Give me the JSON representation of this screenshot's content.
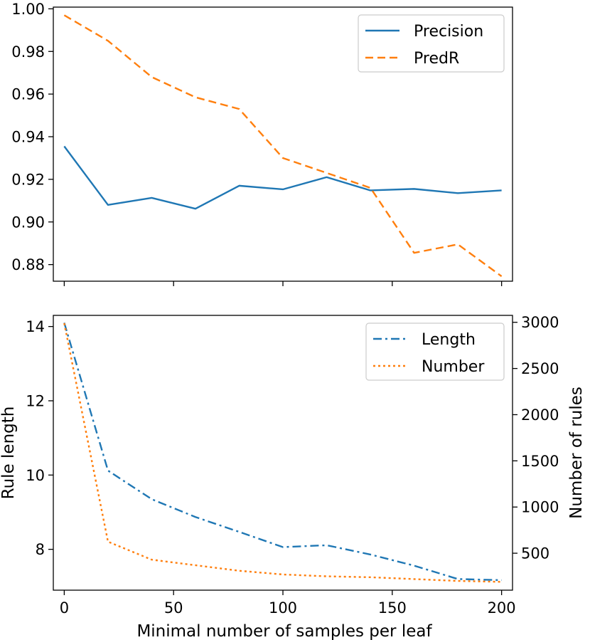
{
  "chart_data": [
    {
      "type": "line",
      "x": [
        0,
        20,
        40,
        60,
        80,
        100,
        120,
        140,
        160,
        180,
        200
      ],
      "series": [
        {
          "name": "Precision",
          "color": "#1f77b4",
          "style": "solid",
          "values": [
            0.9355,
            0.908,
            0.9113,
            0.9062,
            0.917,
            0.9153,
            0.921,
            0.9148,
            0.9155,
            0.9135,
            0.9148
          ]
        },
        {
          "name": "PredR",
          "color": "#ff7f0e",
          "style": "dashed",
          "values": [
            0.997,
            0.985,
            0.968,
            0.9585,
            0.953,
            0.93,
            0.923,
            0.916,
            0.8855,
            0.8895,
            0.8745
          ]
        }
      ],
      "xlim": [
        -5,
        205
      ],
      "ylim": [
        0.8722,
        1.0008
      ],
      "yticks": [
        0.88,
        0.9,
        0.92,
        0.94,
        0.96,
        0.98,
        1.0
      ],
      "ytick_labels": [
        "0.88",
        "0.90",
        "0.92",
        "0.94",
        "0.96",
        "0.98",
        "1.00"
      ],
      "xticks": [
        0,
        50,
        100,
        150,
        200
      ],
      "legend": "top-right",
      "grid": false
    },
    {
      "type": "line",
      "x": [
        0,
        20,
        40,
        60,
        80,
        100,
        120,
        140,
        160,
        180,
        200
      ],
      "series": [
        {
          "name": "Length",
          "color": "#1f77b4",
          "style": "dashdot",
          "axis": "left",
          "values": [
            14.1,
            10.12,
            9.35,
            8.87,
            8.47,
            8.06,
            8.11,
            7.86,
            7.56,
            7.2,
            7.17
          ]
        },
        {
          "name": "Number",
          "color": "#ff7f0e",
          "style": "dotted",
          "axis": "right",
          "values": [
            2990,
            625,
            430,
            370,
            310,
            270,
            250,
            240,
            220,
            200,
            190
          ]
        }
      ],
      "xlim": [
        -5,
        205
      ],
      "ylim_left": [
        6.9,
        14.3
      ],
      "ylim_right": [
        100,
        3075
      ],
      "yticks_left": [
        8,
        10,
        12,
        14
      ],
      "ytick_labels_left": [
        "8",
        "10",
        "12",
        "14"
      ],
      "yticks_right": [
        500,
        1000,
        1500,
        2000,
        2500,
        3000
      ],
      "ytick_labels_right": [
        "500",
        "1000",
        "1500",
        "2000",
        "2500",
        "3000"
      ],
      "xticks": [
        0,
        50,
        100,
        150,
        200
      ],
      "xtick_labels": [
        "0",
        "50",
        "100",
        "150",
        "200"
      ],
      "xlabel": "Minimal number of samples per leaf",
      "ylabel_left": "Rule length",
      "ylabel_right": "Number of rules",
      "legend": "top-right",
      "grid": false
    }
  ]
}
